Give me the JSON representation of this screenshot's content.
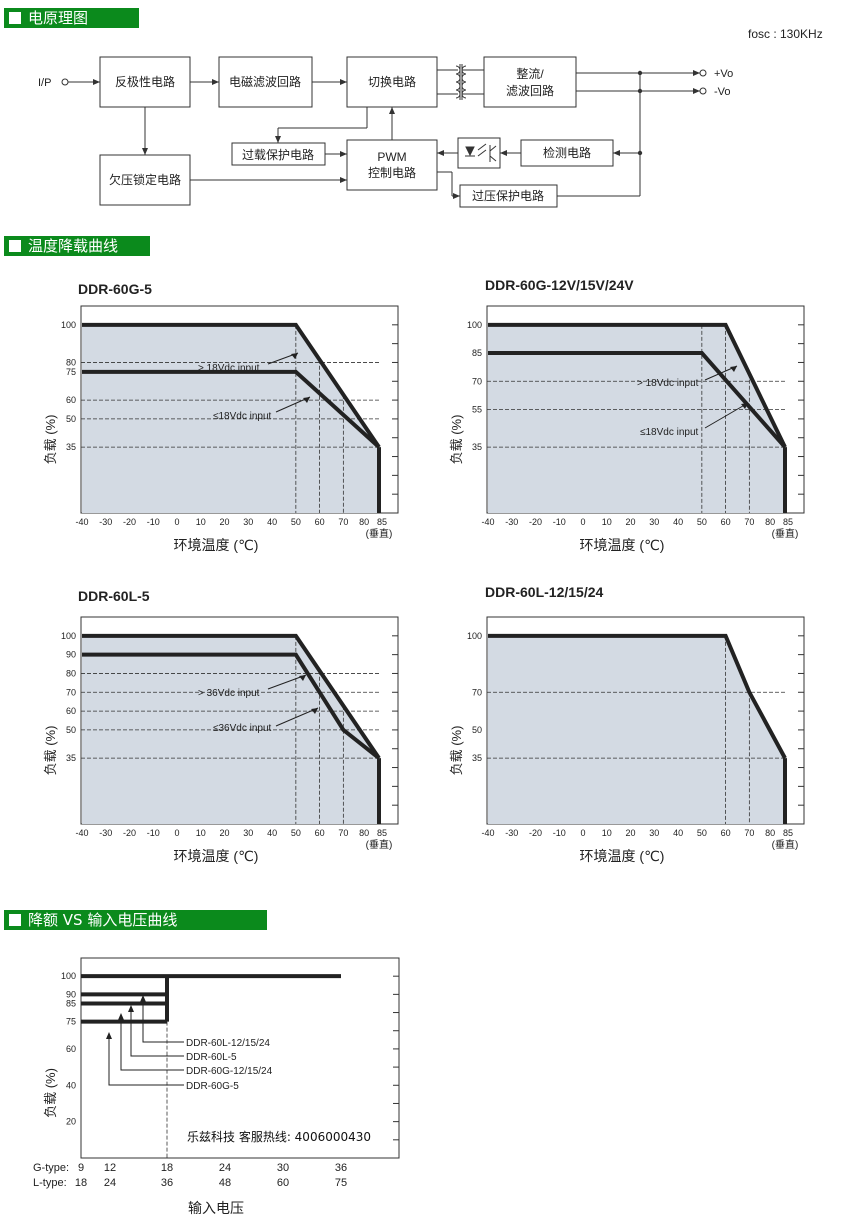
{
  "sections": {
    "block_diagram": "电原理图",
    "derating": "温度降载曲线",
    "input_derating": "降额 VS 输入电压曲线"
  },
  "block_diagram": {
    "fosc": "fosc : 130KHz",
    "ip": "I/P",
    "vo_plus": "+Vo",
    "vo_minus": "-Vo",
    "blocks": {
      "reverse_polarity": "反极性电路",
      "emi_filter": "电磁滤波回路",
      "switching": "切换电路",
      "rectifier_l1": "整流/",
      "rectifier_l2": "滤波回路",
      "uvlo": "欠压锁定电路",
      "olp": "过载保护电路",
      "pwm_l1": "PWM",
      "pwm_l2": "控制电路",
      "detection": "检测电路",
      "ovp": "过压保护电路"
    }
  },
  "chart_common": {
    "ylabel": "负载 (%)",
    "xlabel": "环境温度 (℃)",
    "vertical_note": "(垂直)",
    "xticks": [
      "-40",
      "-30",
      "-20",
      "-10",
      "0",
      "10",
      "20",
      "30",
      "40",
      "50",
      "60",
      "70",
      "80",
      "85"
    ]
  },
  "input_chart": {
    "ylabel": "负载 (%)",
    "xlabel": "输入电压",
    "g_type_label": "G-type:",
    "l_type_label": "L-type:",
    "g_type_ticks": [
      "9",
      "12",
      "18",
      "24",
      "30",
      "36"
    ],
    "l_type_ticks": [
      "18",
      "24",
      "36",
      "48",
      "60",
      "75"
    ],
    "yticks": [
      "100",
      "90",
      "85",
      "75",
      "60",
      "40",
      "20"
    ],
    "hotline": "乐兹科技 客服热线: 4006000430",
    "annotations": [
      "DDR-60L-12/15/24",
      "DDR-60L-5",
      "DDR-60G-12/15/24",
      "DDR-60G-5"
    ]
  },
  "chart_data": [
    {
      "type": "line",
      "title": "DDR-60G-5",
      "xlabel": "环境温度 (℃)",
      "ylabel": "负载 (%)",
      "xlim": [
        -40,
        85
      ],
      "yticks": [
        100,
        80,
        75,
        60,
        50,
        35
      ],
      "x": [
        -40,
        50,
        85
      ],
      "series": [
        {
          "name": "> 18Vdc input",
          "points": [
            [
              -40,
              100
            ],
            [
              50,
              100
            ],
            [
              85,
              35
            ]
          ]
        },
        {
          "name": "≤18Vdc input",
          "points": [
            [
              -40,
              75
            ],
            [
              50,
              75
            ],
            [
              85,
              35
            ]
          ]
        }
      ],
      "guides": {
        "v": [
          50,
          60,
          70
        ],
        "h": [
          80,
          60,
          50,
          35
        ]
      }
    },
    {
      "type": "line",
      "title": "DDR-60G-12V/15V/24V",
      "xlabel": "环境温度 (℃)",
      "ylabel": "负载 (%)",
      "xlim": [
        -40,
        85
      ],
      "yticks": [
        100,
        85,
        70,
        55,
        35
      ],
      "series": [
        {
          "name": "> 18Vdc input",
          "points": [
            [
              -40,
              100
            ],
            [
              60,
              100
            ],
            [
              85,
              35
            ]
          ]
        },
        {
          "name": "≤18Vdc input",
          "points": [
            [
              -40,
              85
            ],
            [
              50,
              85
            ],
            [
              85,
              35
            ]
          ]
        }
      ],
      "guides": {
        "v": [
          50,
          60,
          70
        ],
        "h": [
          70,
          55,
          35
        ]
      }
    },
    {
      "type": "line",
      "title": "DDR-60L-5",
      "xlabel": "环境温度 (℃)",
      "ylabel": "负载 (%)",
      "xlim": [
        -40,
        85
      ],
      "yticks": [
        100,
        90,
        80,
        70,
        60,
        50,
        35
      ],
      "series": [
        {
          "name": "> 36Vdc input",
          "points": [
            [
              -40,
              100
            ],
            [
              50,
              100
            ],
            [
              85,
              35
            ]
          ]
        },
        {
          "name": "≤36Vdc input",
          "points": [
            [
              -40,
              90
            ],
            [
              50,
              90
            ],
            [
              70,
              50
            ],
            [
              85,
              35
            ]
          ]
        }
      ],
      "guides": {
        "v": [
          50,
          60,
          70
        ],
        "h": [
          80,
          70,
          60,
          50,
          35
        ]
      }
    },
    {
      "type": "line",
      "title": "DDR-60L-12/15/24",
      "xlabel": "环境温度 (℃)",
      "ylabel": "负载 (%)",
      "xlim": [
        -40,
        85
      ],
      "yticks": [
        100,
        70,
        50,
        35
      ],
      "series": [
        {
          "name": "",
          "points": [
            [
              -40,
              100
            ],
            [
              60,
              100
            ],
            [
              70,
              70
            ],
            [
              85,
              35
            ]
          ]
        }
      ],
      "guides": {
        "v": [
          60,
          70
        ],
        "h": [
          70,
          35
        ]
      }
    },
    {
      "type": "line",
      "title": "",
      "xlabel": "输入电压",
      "ylabel": "负载 (%)",
      "yticks": [
        100,
        90,
        85,
        75,
        60,
        40,
        20
      ],
      "series": [
        {
          "name": "DDR-60L-12/15/24",
          "points": [
            [
              36,
              100
            ],
            [
              75,
              100
            ]
          ]
        },
        {
          "name": "DDR-60L-5",
          "points": [
            [
              18,
              90
            ],
            [
              36,
              90
            ]
          ]
        },
        {
          "name": "DDR-60G-12/15/24",
          "points": [
            [
              9,
              85
            ],
            [
              18,
              85
            ]
          ]
        },
        {
          "name": "DDR-60G-5",
          "points": [
            [
              9,
              75
            ],
            [
              18,
              75
            ]
          ]
        }
      ]
    }
  ]
}
